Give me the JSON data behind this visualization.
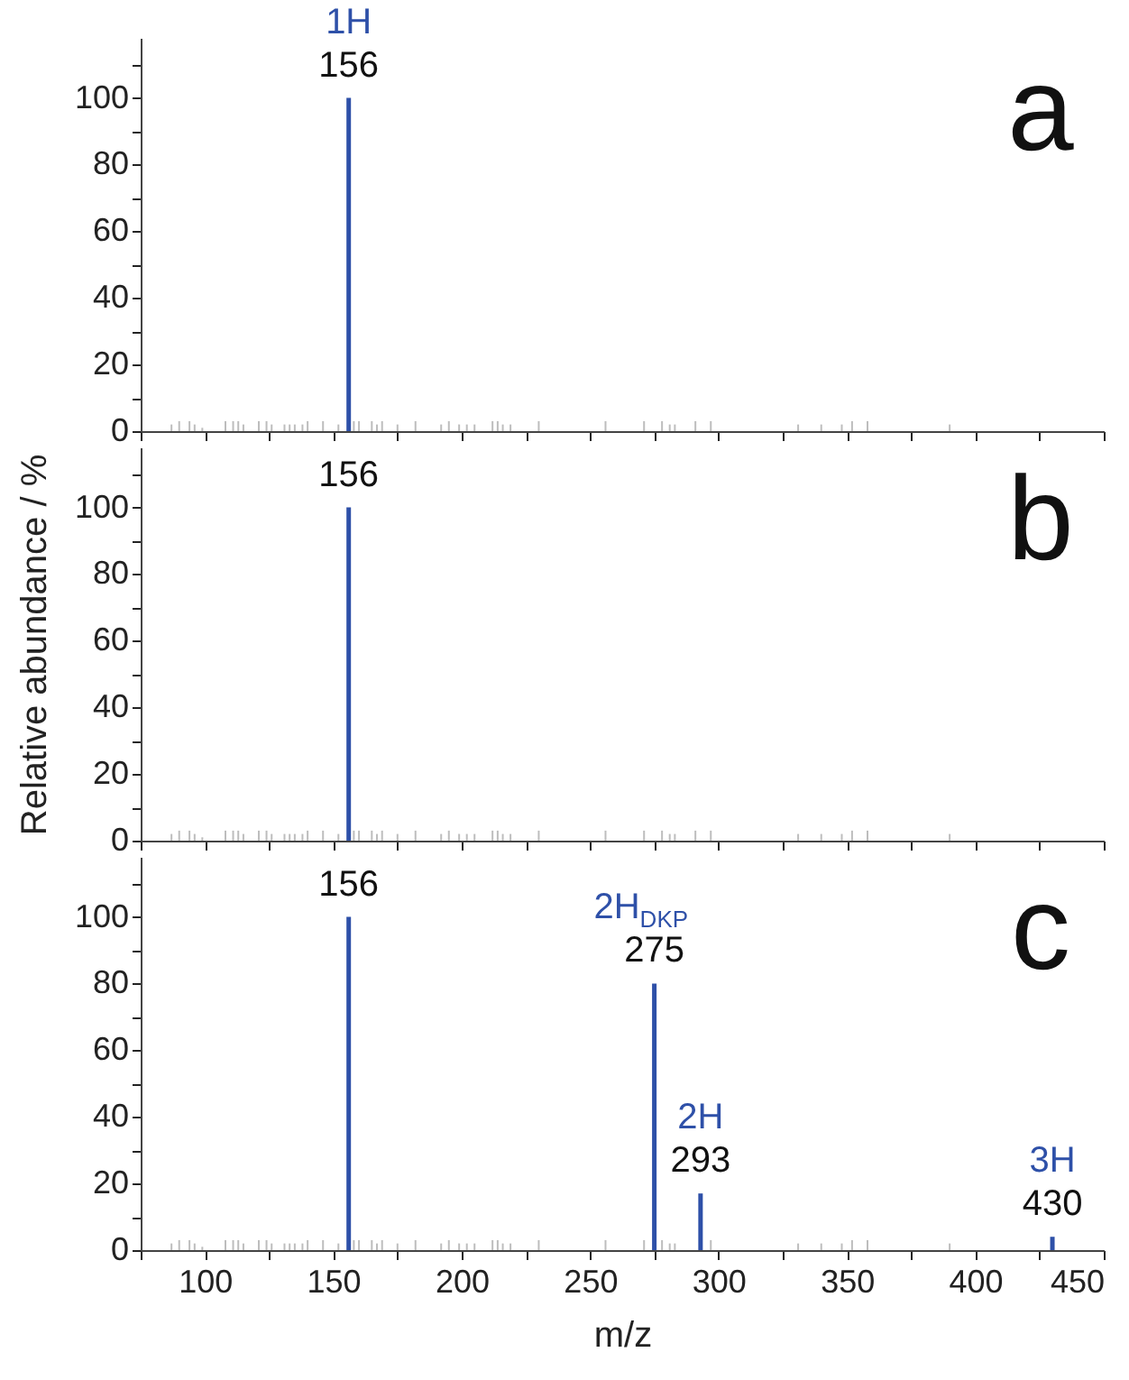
{
  "chart_data": [
    {
      "type": "bar",
      "xlim": [
        75,
        450
      ],
      "ylim": [
        0,
        118
      ],
      "tick_labels": "y",
      "xticks": [
        {
          "value": 75,
          "label": null
        },
        100,
        {
          "value": 125,
          "label": null
        },
        150,
        {
          "value": 175,
          "label": null
        },
        200,
        {
          "value": 225,
          "label": null
        },
        250,
        {
          "value": 275,
          "label": null
        },
        300,
        {
          "value": 325,
          "label": null
        },
        350,
        {
          "value": 375,
          "label": null
        },
        400,
        {
          "value": 425,
          "label": null
        },
        450
      ],
      "yticks": [
        0,
        {
          "value": 10,
          "label": null
        },
        20,
        {
          "value": 30,
          "label": null
        },
        40,
        {
          "value": 50,
          "label": null
        },
        60,
        {
          "value": 70,
          "label": null
        },
        80,
        {
          "value": 90,
          "label": null
        },
        100,
        {
          "value": 110,
          "label": null
        }
      ],
      "series": [
        {
          "color": "#bdbdbd",
          "x": [
            87,
            90,
            94,
            96,
            99,
            108,
            111,
            113,
            115,
            121,
            124,
            126,
            131,
            133,
            135,
            138,
            140,
            146,
            152,
            158,
            160,
            165,
            167,
            169,
            175,
            182,
            192,
            195,
            199,
            202,
            205,
            212,
            214,
            216,
            219,
            230,
            256,
            271,
            278,
            281,
            283,
            291,
            297,
            331,
            340,
            348,
            352,
            358,
            390
          ],
          "values": [
            2,
            3,
            3,
            2,
            1,
            3,
            3,
            3,
            2,
            3,
            3,
            2,
            2,
            2,
            2,
            2,
            3,
            3,
            2,
            3,
            3,
            3,
            2,
            3,
            2,
            3,
            2,
            3,
            2,
            2,
            2,
            3,
            3,
            2,
            2,
            3,
            3,
            3,
            3,
            2,
            2,
            3,
            3,
            2,
            2,
            2,
            3,
            3,
            2
          ]
        },
        {
          "color": "#2e50a8",
          "x": [
            156
          ],
          "values": [
            100
          ]
        }
      ],
      "annotations": [
        {
          "text": "156",
          "x": 156,
          "y": 100
        },
        {
          "text": "1H",
          "x": 156,
          "y": 100
        },
        "a"
      ]
    },
    {
      "type": "bar",
      "xlim": [
        75,
        450
      ],
      "ylim": [
        0,
        118
      ],
      "tick_labels": "y",
      "ylabel": "Relative abundance / %",
      "xticks": [
        {
          "value": 75,
          "label": null
        },
        100,
        {
          "value": 125,
          "label": null
        },
        150,
        {
          "value": 175,
          "label": null
        },
        200,
        {
          "value": 225,
          "label": null
        },
        250,
        {
          "value": 275,
          "label": null
        },
        300,
        {
          "value": 325,
          "label": null
        },
        350,
        {
          "value": 375,
          "label": null
        },
        400,
        {
          "value": 425,
          "label": null
        },
        450
      ],
      "yticks": [
        0,
        {
          "value": 10,
          "label": null
        },
        20,
        {
          "value": 30,
          "label": null
        },
        40,
        {
          "value": 50,
          "label": null
        },
        60,
        {
          "value": 70,
          "label": null
        },
        80,
        {
          "value": 90,
          "label": null
        },
        100,
        {
          "value": 110,
          "label": null
        }
      ],
      "series": [
        {
          "color": "#bdbdbd",
          "x": [
            87,
            90,
            94,
            96,
            99,
            108,
            111,
            113,
            115,
            121,
            124,
            126,
            131,
            133,
            135,
            138,
            140,
            146,
            152,
            158,
            160,
            165,
            167,
            169,
            175,
            182,
            192,
            195,
            199,
            202,
            205,
            212,
            214,
            216,
            219,
            230,
            256,
            271,
            278,
            281,
            283,
            291,
            297,
            331,
            340,
            348,
            352,
            358,
            390
          ],
          "values": [
            2,
            3,
            3,
            2,
            1,
            3,
            3,
            3,
            2,
            3,
            3,
            2,
            2,
            2,
            2,
            2,
            3,
            3,
            2,
            3,
            3,
            3,
            2,
            3,
            2,
            3,
            2,
            3,
            2,
            2,
            2,
            3,
            3,
            2,
            2,
            3,
            3,
            3,
            3,
            2,
            2,
            3,
            3,
            2,
            2,
            2,
            3,
            3,
            2
          ]
        },
        {
          "color": "#2e50a8",
          "x": [
            156
          ],
          "values": [
            100
          ]
        }
      ],
      "annotations": [
        {
          "text": "156",
          "x": 156,
          "y": 100
        },
        "b"
      ]
    },
    {
      "type": "bar",
      "xlim": [
        75,
        450
      ],
      "ylim": [
        0,
        118
      ],
      "xlabel": "m/z",
      "xticks": [
        {
          "value": 75,
          "label": null
        },
        100,
        {
          "value": 125,
          "label": null
        },
        150,
        {
          "value": 175,
          "label": null
        },
        200,
        {
          "value": 225,
          "label": null
        },
        250,
        {
          "value": 275,
          "label": null
        },
        300,
        {
          "value": 325,
          "label": null
        },
        350,
        {
          "value": 375,
          "label": null
        },
        400,
        {
          "value": 425,
          "label": null
        },
        450
      ],
      "yticks": [
        0,
        {
          "value": 10,
          "label": null
        },
        20,
        {
          "value": 30,
          "label": null
        },
        40,
        {
          "value": 50,
          "label": null
        },
        60,
        {
          "value": 70,
          "label": null
        },
        80,
        {
          "value": 90,
          "label": null
        },
        100,
        {
          "value": 110,
          "label": null
        }
      ],
      "series": [
        {
          "color": "#bdbdbd",
          "x": [
            87,
            90,
            94,
            96,
            99,
            108,
            111,
            113,
            115,
            121,
            124,
            126,
            131,
            133,
            135,
            138,
            140,
            146,
            152,
            158,
            160,
            165,
            167,
            169,
            175,
            182,
            192,
            195,
            199,
            202,
            205,
            212,
            214,
            216,
            219,
            230,
            256,
            271,
            278,
            281,
            283,
            297,
            331,
            340,
            348,
            352,
            358,
            390
          ],
          "values": [
            2,
            3,
            3,
            2,
            1,
            3,
            3,
            3,
            2,
            3,
            3,
            2,
            2,
            2,
            2,
            2,
            3,
            3,
            2,
            3,
            3,
            3,
            2,
            3,
            2,
            3,
            2,
            3,
            2,
            2,
            2,
            3,
            3,
            2,
            2,
            3,
            3,
            3,
            3,
            2,
            2,
            3,
            2,
            2,
            2,
            3,
            3,
            2
          ]
        },
        {
          "color": "#2e50a8",
          "x": [
            156,
            275,
            293,
            430
          ],
          "values": [
            100,
            80,
            17,
            4
          ]
        }
      ],
      "annotations": [
        {
          "text": "156",
          "x": 156,
          "y": 100
        },
        {
          "text": "275",
          "x": 275,
          "y": 80
        },
        {
          "text": "2H$_{DKP}$",
          "x": 275,
          "y": 80
        },
        {
          "text": "293",
          "x": 293,
          "y": 17
        },
        {
          "text": "2H",
          "x": 293,
          "y": 17
        },
        {
          "text": "430",
          "x": 430,
          "y": 4
        },
        {
          "text": "3H",
          "x": 430,
          "y": 4
        },
        "c"
      ]
    }
  ]
}
